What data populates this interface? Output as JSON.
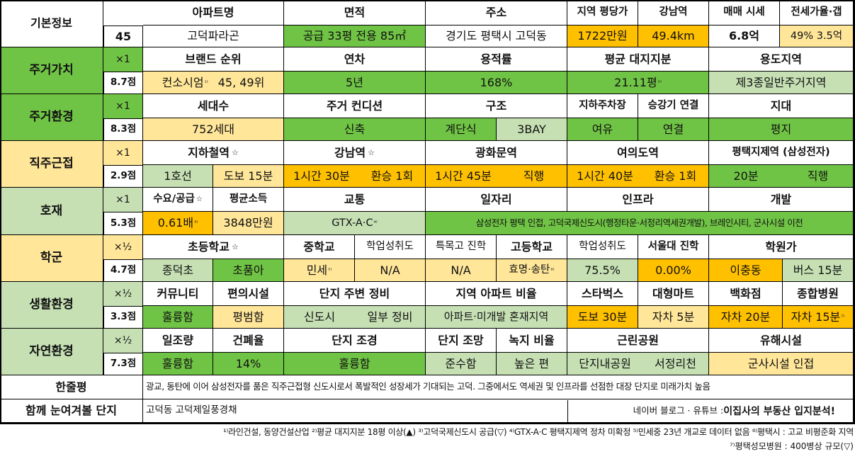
{
  "info": {
    "label": "기본정보",
    "number": "45",
    "apt_head": "아파트명",
    "apt": "고덕파라곤",
    "area_head": "면적",
    "area": "공급 33평  전용 85㎡",
    "addr_head": "주소",
    "addr": "경기도 평택시 고덕동",
    "price_head": "지역 평당가",
    "price": "1722만원",
    "gangnam_head": "강남역",
    "gangnam": "49.4km",
    "sale_head": "매매 시세",
    "sale": "6.8억",
    "jeonse_head": "전세가율·갭",
    "jeonse": "49%   3.5억"
  },
  "residence": {
    "label": "주거가치",
    "mult": "×1",
    "score": "8.7점",
    "heads": [
      "브랜드 순위",
      "연차",
      "용적률",
      "평균 대지지분",
      "용도지역"
    ],
    "brand": "컨소시엄",
    "brand_note": "¹⁾",
    "brand_rank": "45, 49위",
    "age": "5년",
    "far": "168%",
    "land": "21.11평",
    "land_note": "²⁾",
    "zone": "제3종일반주거지역"
  },
  "env": {
    "label": "주거환경",
    "mult": "×1",
    "score": "8.3점",
    "heads": [
      "세대수",
      "주거 컨디션",
      "구조",
      "지하주차장",
      "승강기 연결",
      "지대"
    ],
    "households": "752세대",
    "condition": "신축",
    "stair": "계단식",
    "bay": "3BAY",
    "parking": "여유",
    "elevator": "연결",
    "terrain": "평지"
  },
  "commute": {
    "label": "직주근접",
    "mult": "×1",
    "score": "2.9점",
    "heads": [
      "지하철역",
      "강남역",
      "광화문역",
      "여의도역",
      "평택지제역 (삼성전자)"
    ],
    "star": "☆",
    "subway_line": "1호선",
    "subway_walk": "도보 15분",
    "gangnam_time": "1시간 30분",
    "gangnam_transfer": "환승 1회",
    "gwanghwamun_time": "1시간 45분",
    "gwanghwamun_transfer": "직행",
    "yeouido_time": "1시간 40분",
    "yeouido_transfer": "환승 1회",
    "jije_time": "20분",
    "jije_transfer": "직행"
  },
  "news": {
    "label": "호재",
    "mult": "×1",
    "score": "5.3점",
    "heads": [
      "수요/공급",
      "평균소득",
      "교통",
      "일자리",
      "인프라",
      "개발"
    ],
    "star": "☆",
    "supply": "0.61배",
    "supply_note": "³⁾",
    "income": "3848만원",
    "traffic": "GTX-A·C",
    "traffic_note": "⁴⁾",
    "jobs": "삼성전자 평택 인접, 고덕국제신도시(행정타운·서정리역세권개발), 브레인시티, 군사시설 이전"
  },
  "school": {
    "label": "학군",
    "mult": "×½",
    "score": "4.7점",
    "heads": [
      "초등학교",
      "중학교",
      "학업성취도",
      "특목고 진학",
      "고등학교",
      "학업성취도",
      "서울대 진학",
      "학원가"
    ],
    "star": "☆",
    "elem1": "종덕초",
    "elem2": "초품아",
    "middle": "민세",
    "middle_note": "⁵⁾",
    "mid_ach": "N/A",
    "special": "N/A",
    "high": "효명·송탄",
    "high_note": "⁶⁾",
    "high_ach": "75.5%",
    "snu": "0.00%",
    "academy": "이충동",
    "academy_dist": "버스 15분"
  },
  "life": {
    "label": "생활환경",
    "mult": "×½",
    "score": "3.3점",
    "heads": [
      "커뮤니티",
      "편의시설",
      "단지 주변 정비",
      "지역 아파트 비율",
      "스타벅스",
      "대형마트",
      "백화점",
      "종합병원"
    ],
    "community": "훌륭함",
    "convenience": "평범함",
    "area1": "신도시",
    "area2": "일부 정비",
    "ratio": "아파트·미개발 혼재지역",
    "starbucks": "도보 30분",
    "mart": "자차 5분",
    "dept": "자차 20분",
    "hospital": "자차 15분",
    "hospital_note": "⁷⁾"
  },
  "nature": {
    "label": "자연환경",
    "mult": "×½",
    "score": "7.3점",
    "heads": [
      "일조량",
      "건폐율",
      "단지 조경",
      "단지 조망",
      "녹지 비율",
      "근린공원",
      "유해시설"
    ],
    "sun": "훌륭함",
    "bcr": "14%",
    "landscape": "훌륭함",
    "view": "준수함",
    "green": "높은 편",
    "park1": "단지내공원",
    "park2": "서정리천",
    "hazard": "군사시설 인접"
  },
  "summary": {
    "label": "한줄평",
    "text": "광교, 동탄에 이어 삼성전자를 품은 직주근접형 신도시로서 폭발적인 성장세가 기대되는 고덕. 그중에서도 역세권 및 인프라를 선점한 대장 단지로 미래가치 높음"
  },
  "related": {
    "label": "함께 눈여겨볼 단지",
    "text": "고덕동 고덕제일풍경채",
    "source": "네이버 블로그 · 유튜브 : ",
    "source_name": "이집사의 부동산 입지분석!"
  },
  "footnotes": {
    "line1": "¹⁾라인건설, 동양건설산업  ²⁾평균 대지지분 18평 이상(▲)  ³⁾고덕국제신도시 공급(▽)  ⁴⁾GTX-A·C 평택지제역 정차 미확정  ⁵⁾민세중 23년 개교로 데이터 없음  ⁶⁾평택시 : 고교 비평준화 지역",
    "line2": "⁷⁾평택성모병원 : 400병상 규모(▽)"
  },
  "colors": {
    "green": "#70c445",
    "light_green": "#c6e0b4",
    "yellow": "#ffd966",
    "light_yellow": "#ffe699",
    "orange": "#ffc000"
  }
}
